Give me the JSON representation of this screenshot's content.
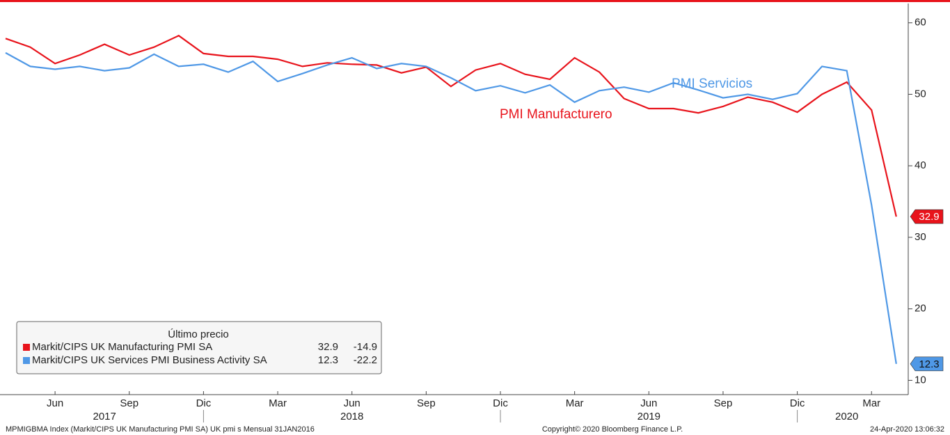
{
  "chart_data": {
    "type": "line",
    "x": [
      "2017-04",
      "2017-05",
      "2017-06",
      "2017-07",
      "2017-08",
      "2017-09",
      "2017-10",
      "2017-11",
      "2017-12",
      "2018-01",
      "2018-02",
      "2018-03",
      "2018-04",
      "2018-05",
      "2018-06",
      "2018-07",
      "2018-08",
      "2018-09",
      "2018-10",
      "2018-11",
      "2018-12",
      "2019-01",
      "2019-02",
      "2019-03",
      "2019-04",
      "2019-05",
      "2019-06",
      "2019-07",
      "2019-08",
      "2019-09",
      "2019-10",
      "2019-11",
      "2019-12",
      "2020-01",
      "2020-02",
      "2020-03",
      "2020-04"
    ],
    "xticks": [
      {
        "value": "2017-06",
        "label": "Jun"
      },
      {
        "value": "2017-09",
        "label": "Sep"
      },
      {
        "value": "2017-12",
        "label": "Dic"
      },
      {
        "value": "2018-03",
        "label": "Mar"
      },
      {
        "value": "2018-06",
        "label": "Jun"
      },
      {
        "value": "2018-09",
        "label": "Sep"
      },
      {
        "value": "2018-12",
        "label": "Dic"
      },
      {
        "value": "2019-03",
        "label": "Mar"
      },
      {
        "value": "2019-06",
        "label": "Jun"
      },
      {
        "value": "2019-09",
        "label": "Sep"
      },
      {
        "value": "2019-12",
        "label": "Dic"
      },
      {
        "value": "2020-03",
        "label": "Mar"
      }
    ],
    "years": [
      "2017",
      "2018",
      "2019",
      "2020"
    ],
    "ylim": [
      8,
      62.7
    ],
    "yticks": [
      10,
      20,
      30,
      40,
      50,
      60
    ],
    "legend_title": "Último precio",
    "series": [
      {
        "name": "Markit/CIPS UK Manufacturing PMI SA",
        "color": "#e8131b",
        "change": -14.9,
        "values": [
          57.8,
          56.6,
          54.3,
          55.5,
          57.0,
          55.5,
          56.6,
          58.2,
          55.7,
          55.3,
          55.3,
          54.9,
          53.9,
          54.4,
          54.2,
          54.1,
          53.0,
          53.8,
          51.1,
          53.4,
          54.3,
          52.8,
          52.1,
          55.1,
          53.1,
          49.4,
          48.0,
          48.0,
          47.4,
          48.3,
          49.6,
          48.9,
          47.5,
          50.0,
          51.7,
          47.8,
          32.9
        ]
      },
      {
        "name": "Markit/CIPS UK Services PMI Business Activity SA",
        "color": "#4f98e6",
        "change": -22.2,
        "values": [
          55.8,
          53.9,
          53.5,
          53.9,
          53.3,
          53.7,
          55.6,
          53.9,
          54.2,
          53.1,
          54.6,
          51.8,
          52.9,
          54.1,
          55.1,
          53.6,
          54.3,
          53.9,
          52.3,
          50.5,
          51.2,
          50.2,
          51.3,
          48.9,
          50.5,
          51.0,
          50.3,
          51.6,
          50.6,
          49.5,
          50.0,
          49.3,
          50.1,
          53.9,
          53.3,
          34.5,
          12.3
        ]
      }
    ],
    "annotations": [
      "PMI Manufacturero",
      "PMI Servicios"
    ],
    "footer_left": "MPMIGBMA Index (Markit/CIPS UK Manufacturing PMI SA) UK pmi s  Mensual 31JAN2016",
    "footer_center": "Copyright© 2020 Bloomberg Finance L.P.",
    "footer_right": "24-Apr-2020 13:06:32"
  }
}
